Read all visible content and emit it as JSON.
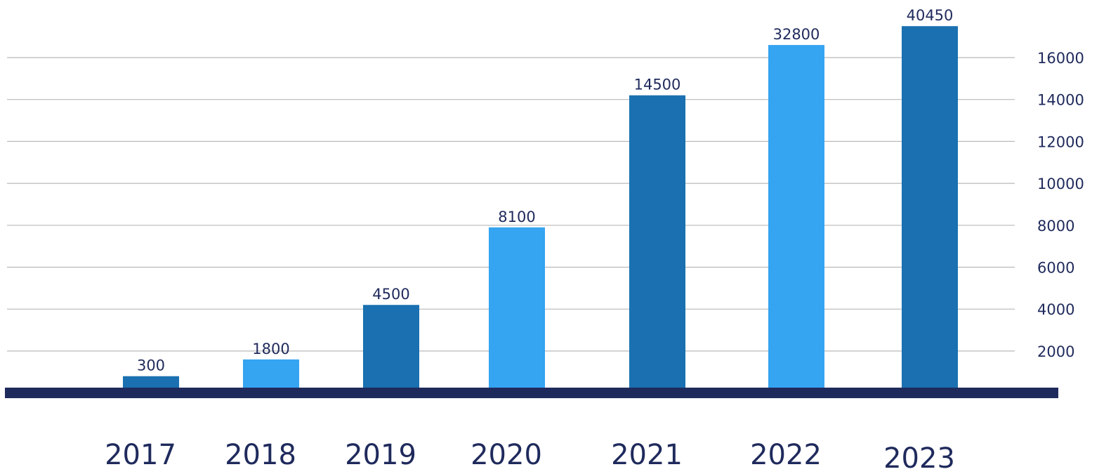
{
  "chart_data": {
    "type": "bar",
    "title": "",
    "xlabel": "",
    "ylabel": "",
    "categories": [
      "2017",
      "2018",
      "2019",
      "2020",
      "2021",
      "2022",
      "2023"
    ],
    "values": [
      300,
      1800,
      4500,
      8100,
      14500,
      32800,
      40450
    ],
    "data_labels": [
      "300",
      "1800",
      "4500",
      "8100",
      "14500",
      "32800",
      "40450"
    ],
    "bar_heights_on_axis": [
      800,
      1600,
      4200,
      7900,
      14200,
      16600,
      17500
    ],
    "ylim": [
      400,
      18000
    ],
    "yticks": [
      2000,
      4000,
      6000,
      8000,
      10000,
      12000,
      14000,
      16000
    ],
    "y_axis_side": "right",
    "grid": true,
    "legend": "none",
    "colors": {
      "bar_dark": "#1a70b0",
      "bar_light": "#35a4f1",
      "baseline": "#1f2a5c",
      "grid": "#b9b9b9",
      "text": "#1f2a5c"
    }
  }
}
